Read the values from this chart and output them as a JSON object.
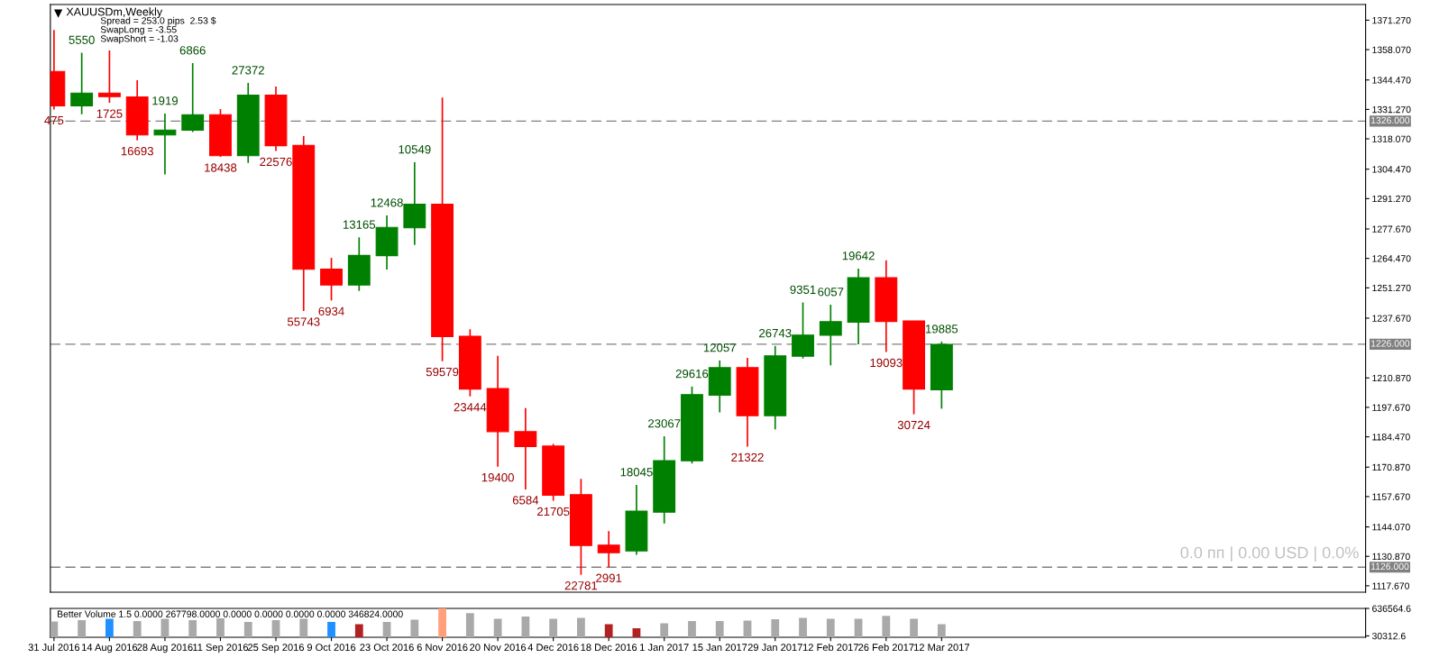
{
  "chart_data": [
    {
      "type": "candlestick",
      "title": "XAUUSDm,Weekly",
      "x": [
        "2016-07-31",
        "2016-08-07",
        "2016-08-14",
        "2016-08-21",
        "2016-08-28",
        "2016-09-04",
        "2016-09-11",
        "2016-09-18",
        "2016-09-25",
        "2016-10-02",
        "2016-10-09",
        "2016-10-16",
        "2016-10-23",
        "2016-10-30",
        "2016-11-06",
        "2016-11-13",
        "2016-11-20",
        "2016-11-27",
        "2016-12-04",
        "2016-12-11",
        "2016-12-18",
        "2016-12-25",
        "2017-01-01",
        "2017-01-08",
        "2017-01-15",
        "2017-01-22",
        "2017-01-29",
        "2017-02-05",
        "2017-02-12",
        "2017-02-19",
        "2017-02-26",
        "2017-03-05",
        "2017-03-12"
      ],
      "ohlc": [
        [
          1348.3,
          1366.9,
          1331.2,
          1332.9
        ],
        [
          1332.9,
          1356.7,
          1329.1,
          1338.6
        ],
        [
          1338.6,
          1357.7,
          1334.2,
          1337.0
        ],
        [
          1336.9,
          1344.4,
          1317.4,
          1319.8
        ],
        [
          1319.8,
          1329.4,
          1302.1,
          1322.0
        ],
        [
          1321.9,
          1352.0,
          1321.1,
          1328.9
        ],
        [
          1328.9,
          1331.4,
          1310.0,
          1310.5
        ],
        [
          1310.5,
          1343.1,
          1307.3,
          1337.7
        ],
        [
          1337.7,
          1341.5,
          1312.6,
          1315.0
        ],
        [
          1315.1,
          1319.3,
          1240.9,
          1259.6
        ],
        [
          1259.7,
          1264.7,
          1245.6,
          1252.5
        ],
        [
          1252.5,
          1273.9,
          1249.9,
          1265.8
        ],
        [
          1265.7,
          1283.7,
          1259.5,
          1278.4
        ],
        [
          1278.2,
          1307.6,
          1270.5,
          1288.8
        ],
        [
          1288.8,
          1336.6,
          1218.4,
          1229.4
        ],
        [
          1229.6,
          1232.7,
          1202.6,
          1205.9
        ],
        [
          1206.1,
          1220.8,
          1171.1,
          1186.8
        ],
        [
          1186.8,
          1197.3,
          1160.9,
          1180.1
        ],
        [
          1180.3,
          1181.3,
          1155.8,
          1158.3
        ],
        [
          1158.5,
          1165.6,
          1122.6,
          1135.7
        ],
        [
          1135.9,
          1142.2,
          1126.0,
          1132.5
        ],
        [
          1133.3,
          1162.9,
          1131.6,
          1151.2
        ],
        [
          1150.7,
          1184.7,
          1145.6,
          1173.8
        ],
        [
          1173.7,
          1207.0,
          1172.5,
          1203.4
        ],
        [
          1203.1,
          1218.7,
          1195.4,
          1215.5
        ],
        [
          1215.5,
          1219.9,
          1180.1,
          1193.9
        ],
        [
          1193.9,
          1225.2,
          1187.8,
          1220.8
        ],
        [
          1220.6,
          1244.7,
          1219.6,
          1230.1
        ],
        [
          1230.0,
          1243.7,
          1216.5,
          1236.1
        ],
        [
          1235.9,
          1259.9,
          1225.9,
          1255.8
        ],
        [
          1255.8,
          1263.6,
          1222.5,
          1236.2
        ],
        [
          1236.4,
          1236.4,
          1194.6,
          1205.9
        ],
        [
          1205.6,
          1227.1,
          1197.1,
          1225.9
        ]
      ],
      "colors": [
        "#ff0000",
        "#008000",
        "#ff0000",
        "#ff0000",
        "#008000",
        "#008000",
        "#ff0000",
        "#008000",
        "#ff0000",
        "#ff0000",
        "#ff0000",
        "#008000",
        "#008000",
        "#008000",
        "#ff0000",
        "#ff0000",
        "#ff0000",
        "#ff0000",
        "#ff0000",
        "#ff0000",
        "#ff0000",
        "#008000",
        "#008000",
        "#008000",
        "#008000",
        "#ff0000",
        "#008000",
        "#008000",
        "#008000",
        "#008000",
        "#ff0000",
        "#ff0000",
        "#008000"
      ],
      "xlim": [
        "2016-07-30T02:00",
        "2017-06-27"
      ],
      "ylim": [
        1114.8,
        1378.3
      ],
      "yticks": [
        {
          "value": 1371.27,
          "label": "1371.270"
        },
        {
          "value": 1358.07,
          "label": "1358.070"
        },
        {
          "value": 1344.47,
          "label": "1344.470"
        },
        {
          "value": 1331.27,
          "label": "1331.270"
        },
        {
          "value": 1318.07,
          "label": "1318.070"
        },
        {
          "value": 1304.47,
          "label": "1304.470"
        },
        {
          "value": 1291.27,
          "label": "1291.270"
        },
        {
          "value": 1277.67,
          "label": "1277.670"
        },
        {
          "value": 1264.47,
          "label": "1264.470"
        },
        {
          "value": 1251.27,
          "label": "1251.270"
        },
        {
          "value": 1237.67,
          "label": "1237.670"
        },
        {
          "value": 1210.87,
          "label": "1210.870"
        },
        {
          "value": 1197.67,
          "label": "1197.670"
        },
        {
          "value": 1184.47,
          "label": "1184.470"
        },
        {
          "value": 1170.87,
          "label": "1170.870"
        },
        {
          "value": 1157.67,
          "label": "1157.670"
        },
        {
          "value": 1144.07,
          "label": "1144.070"
        },
        {
          "value": 1130.87,
          "label": "1130.870"
        },
        {
          "value": 1117.67,
          "label": "1117.670"
        }
      ],
      "tick_labels": "y",
      "grid": false,
      "ref_lines": [
        {
          "axis": "y",
          "value": 1326,
          "label": "1326.000",
          "color": "#808080",
          "line_style": "dashed"
        },
        {
          "axis": "y",
          "value": 1226,
          "label": "1226.000",
          "color": "#808080",
          "line_style": "dashed"
        },
        {
          "axis": "y",
          "value": 1126,
          "label": "1126.000",
          "color": "#808080",
          "line_style": "dashed"
        }
      ],
      "annotations": [
        "Spread = 253.0 pips  2.53 $",
        "SwapLong = -3.55",
        "SwapShort = -1.03",
        "0.0 пп | 0.00 USD | 0.0%",
        {
          "text": "475",
          "x": "2016-07-31",
          "y": 1331.2
        },
        {
          "text": "5550",
          "x": "2016-08-07",
          "y": 1356.7
        },
        {
          "text": "1725",
          "x": "2016-08-14",
          "y": 1334.2
        },
        {
          "text": "16693",
          "x": "2016-08-21",
          "y": 1317.4
        },
        {
          "text": "1919",
          "x": "2016-08-28",
          "y": 1329.4
        },
        {
          "text": "6866",
          "x": "2016-09-04",
          "y": 1352.0
        },
        {
          "text": "18438",
          "x": "2016-09-11",
          "y": 1310.0
        },
        {
          "text": "27372",
          "x": "2016-09-18",
          "y": 1343.1
        },
        {
          "text": "22576",
          "x": "2016-09-25",
          "y": 1312.6
        },
        {
          "text": "55743",
          "x": "2016-10-02",
          "y": 1240.9
        },
        {
          "text": "6934",
          "x": "2016-10-09",
          "y": 1245.6
        },
        {
          "text": "13165",
          "x": "2016-10-16",
          "y": 1273.9
        },
        {
          "text": "12468",
          "x": "2016-10-23",
          "y": 1283.7
        },
        {
          "text": "10549",
          "x": "2016-10-30",
          "y": 1307.6
        },
        {
          "text": "59579",
          "x": "2016-11-06",
          "y": 1218.4
        },
        {
          "text": "23444",
          "x": "2016-11-13",
          "y": 1202.6
        },
        {
          "text": "19400",
          "x": "2016-11-20",
          "y": 1171.1
        },
        {
          "text": "6584",
          "x": "2016-11-27",
          "y": 1160.9
        },
        {
          "text": "21705",
          "x": "2016-12-04",
          "y": 1155.8
        },
        {
          "text": "22781",
          "x": "2016-12-11",
          "y": 1122.6
        },
        {
          "text": "2991",
          "x": "2016-12-18",
          "y": 1126.0
        },
        {
          "text": "18045",
          "x": "2016-12-25",
          "y": 1162.9
        },
        {
          "text": "23067",
          "x": "2017-01-01",
          "y": 1184.7
        },
        {
          "text": "29616",
          "x": "2017-01-08",
          "y": 1207.0
        },
        {
          "text": "12057",
          "x": "2017-01-15",
          "y": 1218.7
        },
        {
          "text": "21322",
          "x": "2017-01-22",
          "y": 1180.1
        },
        {
          "text": "26743",
          "x": "2017-01-29",
          "y": 1225.2
        },
        {
          "text": "9351",
          "x": "2017-02-05",
          "y": 1244.7
        },
        {
          "text": "6057",
          "x": "2017-02-12",
          "y": 1243.7
        },
        {
          "text": "19642",
          "x": "2017-02-19",
          "y": 1259.9
        },
        {
          "text": "19093",
          "x": "2017-02-26",
          "y": 1222.5
        },
        {
          "text": "30724",
          "x": "2017-03-05",
          "y": 1194.6
        },
        {
          "text": "19885",
          "x": "2017-03-12",
          "y": 1227.1
        }
      ]
    },
    {
      "type": "bar",
      "title": "Better Volume 1.5 0.0000 267798.0000 0.0000 0.0000 0.0000 0.0000 346824.0000",
      "x": [
        "2016-07-31",
        "2016-08-07",
        "2016-08-14",
        "2016-08-21",
        "2016-08-28",
        "2016-09-04",
        "2016-09-11",
        "2016-09-18",
        "2016-09-25",
        "2016-10-02",
        "2016-10-09",
        "2016-10-16",
        "2016-10-23",
        "2016-10-30",
        "2016-11-06",
        "2016-11-13",
        "2016-11-20",
        "2016-11-27",
        "2016-12-04",
        "2016-12-11",
        "2016-12-18",
        "2016-12-25",
        "2017-01-01",
        "2017-01-08",
        "2017-01-15",
        "2017-01-22",
        "2017-01-29",
        "2017-02-05",
        "2017-02-12",
        "2017-02-19",
        "2017-02-26",
        "2017-03-05",
        "2017-03-12"
      ],
      "values": [
        350000,
        380000,
        410000,
        360000,
        410000,
        380000,
        420000,
        340000,
        380000,
        410000,
        340000,
        290000,
        340000,
        390000,
        636564.6,
        530000,
        410000,
        460000,
        410000,
        430000,
        290000,
        200000,
        310000,
        360000,
        360000,
        370000,
        400000,
        430000,
        410000,
        410000,
        470000,
        410000,
        290000
      ],
      "colors": [
        "#a9a9a9",
        "#a9a9a9",
        "#1e90ff",
        "#a9a9a9",
        "#a9a9a9",
        "#a9a9a9",
        "#a9a9a9",
        "#a9a9a9",
        "#a9a9a9",
        "#a9a9a9",
        "#1e90ff",
        "#b22222",
        "#a9a9a9",
        "#a9a9a9",
        "#ffa07a",
        "#a9a9a9",
        "#a9a9a9",
        "#a9a9a9",
        "#a9a9a9",
        "#a9a9a9",
        "#b22222",
        "#b22222",
        "#a9a9a9",
        "#a9a9a9",
        "#a9a9a9",
        "#a9a9a9",
        "#a9a9a9",
        "#a9a9a9",
        "#a9a9a9",
        "#a9a9a9",
        "#a9a9a9",
        "#a9a9a9",
        "#a9a9a9"
      ],
      "xlim": [
        "2016-07-30T02:00",
        "2017-06-27"
      ],
      "xticks": [
        {
          "value": "2016-07-31",
          "label": "31 Jul 2016"
        },
        {
          "value": "2016-08-14",
          "label": "14 Aug 2016"
        },
        {
          "value": "2016-08-28",
          "label": "28 Aug 2016"
        },
        {
          "value": "2016-09-11",
          "label": "11 Sep 2016"
        },
        {
          "value": "2016-09-25",
          "label": "25 Sep 2016"
        },
        {
          "value": "2016-10-09",
          "label": "9 Oct 2016"
        },
        {
          "value": "2016-10-23",
          "label": "23 Oct 2016"
        },
        {
          "value": "2016-11-06",
          "label": "6 Nov 2016"
        },
        {
          "value": "2016-11-20",
          "label": "20 Nov 2016"
        },
        {
          "value": "2016-12-04",
          "label": "4 Dec 2016"
        },
        {
          "value": "2016-12-18",
          "label": "18 Dec 2016"
        },
        {
          "value": "2017-01-01",
          "label": "1 Jan 2017"
        },
        {
          "value": "2017-01-15",
          "label": "15 Jan 2017"
        },
        {
          "value": "2017-01-29",
          "label": "29 Jan 2017"
        },
        {
          "value": "2017-02-12",
          "label": "12 Feb 2017"
        },
        {
          "value": "2017-02-26",
          "label": "26 Feb 2017"
        },
        {
          "value": "2017-03-12",
          "label": "12 Mar 2017"
        }
      ],
      "ylim": [
        0,
        636564.6
      ],
      "yticks": [
        30312.6,
        636564.6
      ],
      "grid": false
    }
  ]
}
